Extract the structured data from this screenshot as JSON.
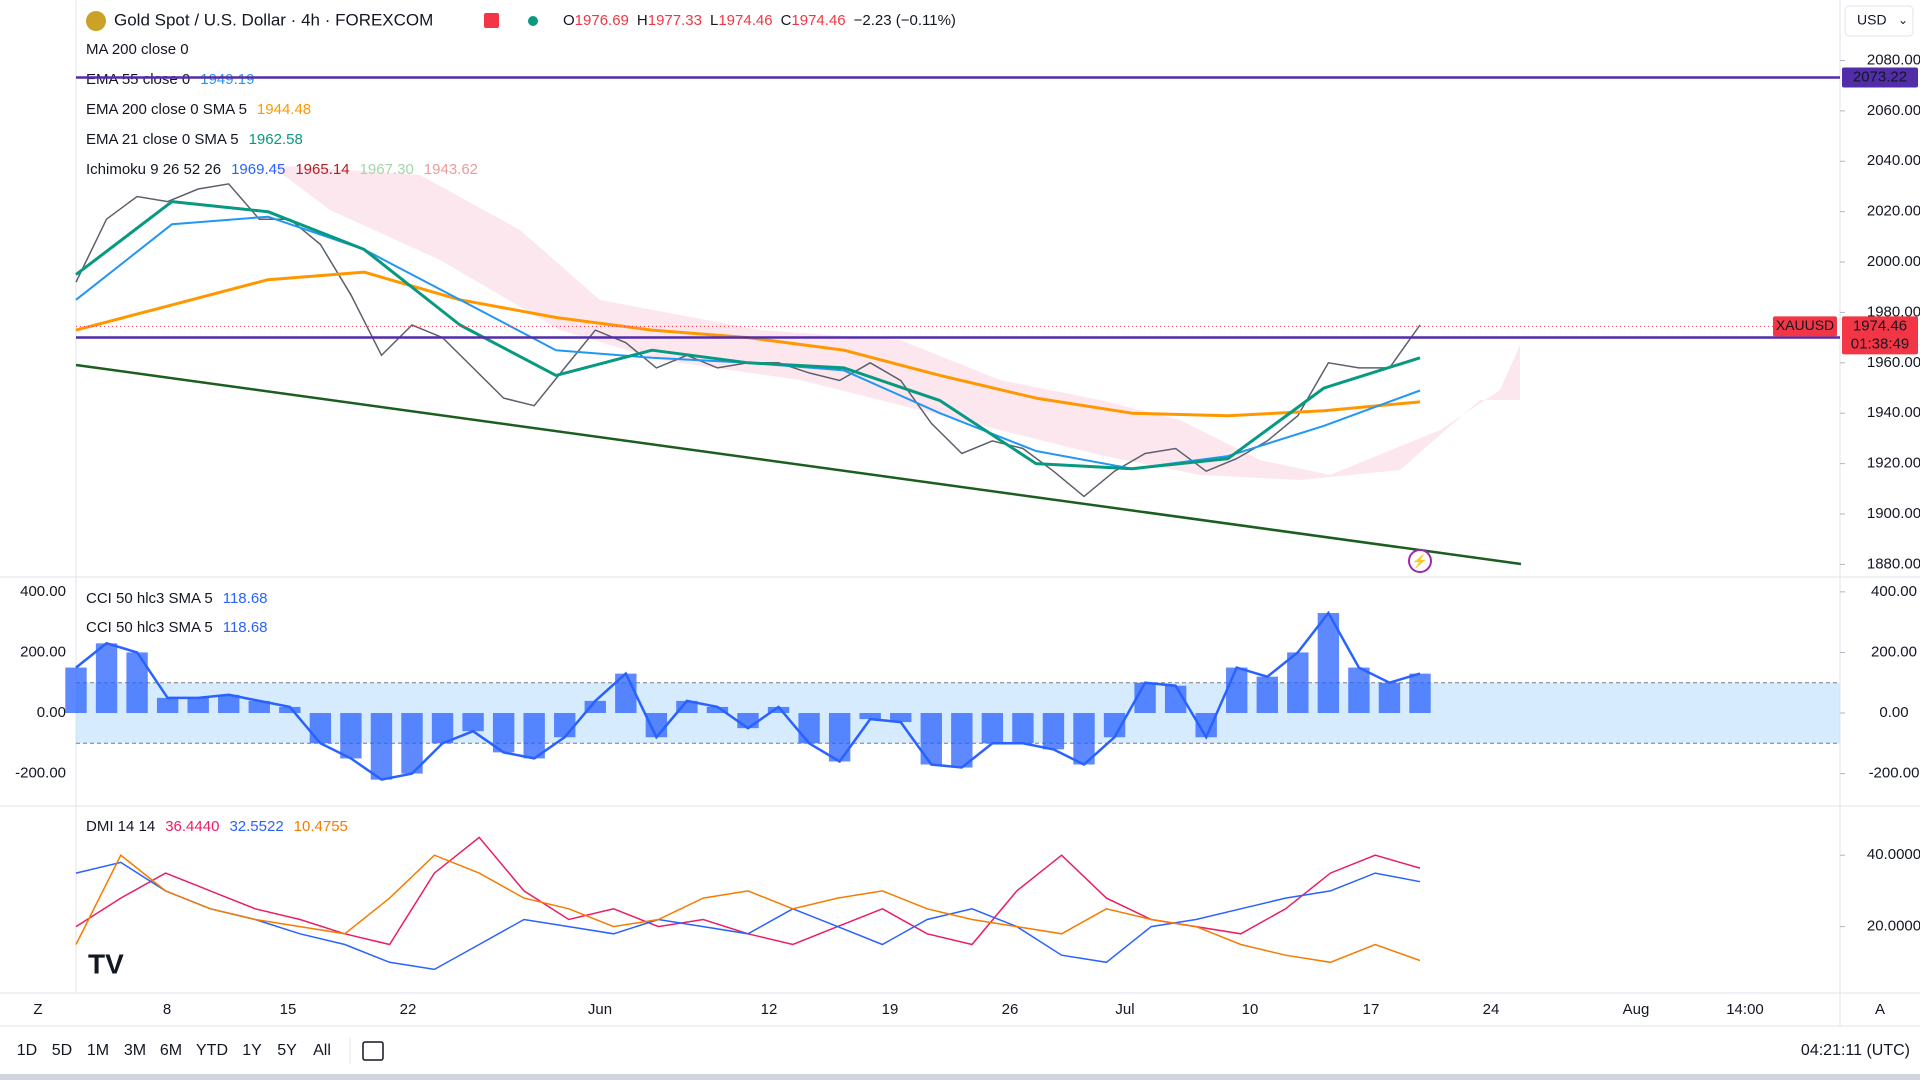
{
  "header": {
    "symbol": "Gold Spot / U.S. Dollar · 4h · FOREXCOM",
    "ohlc": [
      {
        "label": "O",
        "value": "1976.69"
      },
      {
        "label": "H",
        "value": "1977.33"
      },
      {
        "label": "L",
        "value": "1974.46"
      },
      {
        "label": "C",
        "value": "1974.46"
      }
    ],
    "change": "−2.23 (−0.11%)",
    "currency": "USD"
  },
  "legend": [
    {
      "name": "MA 200 close 0",
      "values": []
    },
    {
      "name": "EMA 55 close 0",
      "values": [
        {
          "text": "1949.19",
          "color": "#2196f3"
        }
      ]
    },
    {
      "name": "EMA 200 close 0 SMA 5",
      "values": [
        {
          "text": "1944.48",
          "color": "#ff9800"
        }
      ]
    },
    {
      "name": "EMA 21 close 0 SMA 5",
      "values": [
        {
          "text": "1962.58",
          "color": "#089981"
        }
      ]
    },
    {
      "name": "Ichimoku 9 26 52 26",
      "values": [
        {
          "text": "1969.45",
          "color": "#2962ff"
        },
        {
          "text": "1965.14",
          "color": "#b71c1c"
        },
        {
          "text": "1967.30",
          "color": "#a5d6a7"
        },
        {
          "text": "1943.62",
          "color": "#ef9a9a"
        }
      ]
    }
  ],
  "price_pane": {
    "ylim": [
      1875,
      2104
    ],
    "yticks": [
      {
        "value": 2080,
        "label": "2080.00"
      },
      {
        "value": 2060,
        "label": "2060.00"
      },
      {
        "value": 2040,
        "label": "2040.00"
      },
      {
        "value": 2020,
        "label": "2020.00"
      },
      {
        "value": 2000,
        "label": "2000.00"
      },
      {
        "value": 1980,
        "label": "1980.00"
      },
      {
        "value": 1960,
        "label": "1960.00"
      },
      {
        "value": 1940,
        "label": "1940.00"
      },
      {
        "value": 1920,
        "label": "1920.00"
      },
      {
        "value": 1900,
        "label": "1900.00"
      },
      {
        "value": 1880,
        "label": "1880.00"
      }
    ],
    "price": {
      "color": "#5d606b",
      "values": [
        1992,
        2017,
        2026,
        2024,
        2029,
        2031,
        2017,
        2017,
        2007,
        1987,
        1963,
        1975,
        1970,
        1958,
        1946,
        1943,
        1958,
        1973,
        1968,
        1958,
        1963,
        1958,
        1960,
        1960,
        1956,
        1953,
        1960,
        1953,
        1936,
        1924,
        1929,
        1926,
        1917,
        1907,
        1917,
        1924,
        1926,
        1917,
        1922,
        1929,
        1939,
        1960,
        1958,
        1958,
        1975
      ]
    },
    "series": [
      {
        "color": "#ff9800",
        "width": 3,
        "values": [
          1973,
          1983,
          1993,
          1996,
          1985,
          1978,
          1973,
          1970,
          1965,
          1955,
          1946,
          1940,
          1939,
          1941,
          1944.5
        ]
      },
      {
        "color": "#2196f3",
        "width": 2,
        "values": [
          1985,
          2015,
          2018,
          2005,
          1985,
          1965,
          1962,
          1960,
          1957,
          1940,
          1925,
          1918,
          1923,
          1935,
          1949
        ]
      },
      {
        "color": "#089981",
        "width": 3,
        "values": [
          1995,
          2024,
          2020,
          2005,
          1975,
          1955,
          1965,
          1960,
          1958,
          1945,
          1920,
          1918,
          1922,
          1950,
          1962
        ]
      }
    ],
    "levels": [
      {
        "value": 2073.22,
        "label": "2073.22",
        "color": "#512da8"
      },
      {
        "value": 1970.04,
        "label": "1970.04",
        "color": "#512da8"
      }
    ],
    "last": {
      "value": 1974.46,
      "symbol": "XAUUSD",
      "label": "1974.46",
      "countdown": "01:38:49",
      "color": "#f23645"
    }
  },
  "cci_pane": {
    "legend": [
      "CCI 50 hlc3 SMA 5",
      "CCI 50 hlc3 SMA 5"
    ],
    "legend_value": "118.68",
    "ylim": [
      -307,
      449
    ],
    "band": [
      100,
      -100
    ],
    "yticks": [
      {
        "value": 400,
        "label": "400.00"
      },
      {
        "value": 200,
        "label": "200.00"
      },
      {
        "value": 0,
        "label": "0.00"
      },
      {
        "value": -200,
        "label": "-200.00"
      }
    ],
    "color": "#2962ff",
    "values": [
      150,
      230,
      200,
      50,
      50,
      60,
      40,
      20,
      -100,
      -150,
      -220,
      -200,
      -100,
      -60,
      -130,
      -150,
      -80,
      40,
      130,
      -80,
      40,
      20,
      -50,
      20,
      -100,
      -160,
      -20,
      -30,
      -170,
      -180,
      -100,
      -100,
      -120,
      -170,
      -80,
      100,
      90,
      -80,
      150,
      120,
      200,
      330,
      150,
      100,
      130
    ]
  },
  "dmi_pane": {
    "legend": "DMI 14 14",
    "ylim": [
      1.4,
      53.8
    ],
    "yticks": [
      {
        "value": 40,
        "label": "40.0000"
      },
      {
        "value": 20,
        "label": "20.0000"
      }
    ],
    "series": [
      {
        "label": "36.4440",
        "color": "#e91e63",
        "values": [
          20,
          28,
          35,
          30,
          25,
          22,
          18,
          15,
          35,
          45,
          30,
          22,
          25,
          20,
          22,
          18,
          15,
          20,
          25,
          18,
          15,
          30,
          40,
          28,
          22,
          20,
          18,
          25,
          35,
          40,
          36.4
        ]
      },
      {
        "label": "32.5522",
        "color": "#2962ff",
        "values": [
          35,
          38,
          30,
          25,
          22,
          18,
          15,
          10,
          8,
          15,
          22,
          20,
          18,
          22,
          20,
          18,
          25,
          20,
          15,
          22,
          25,
          20,
          12,
          10,
          20,
          22,
          25,
          28,
          30,
          35,
          32.6
        ]
      },
      {
        "label": "10.4755",
        "color": "#f57c00",
        "values": [
          15,
          40,
          30,
          25,
          22,
          20,
          18,
          28,
          40,
          35,
          28,
          25,
          20,
          22,
          28,
          30,
          25,
          28,
          30,
          25,
          22,
          20,
          18,
          25,
          22,
          20,
          15,
          12,
          10,
          15,
          10.5
        ]
      }
    ]
  },
  "time_axis": {
    "labels": [
      "8",
      "15",
      "22",
      "Jun",
      "12",
      "19",
      "26",
      "Jul",
      "10",
      "17",
      "24",
      "Aug",
      "14:00"
    ],
    "left": "Z",
    "right": "A"
  },
  "toolbar": {
    "ranges": [
      "1D",
      "5D",
      "1M",
      "3M",
      "6M",
      "YTD",
      "1Y",
      "5Y",
      "All"
    ],
    "clock": "04:21:11 (UTC)"
  }
}
